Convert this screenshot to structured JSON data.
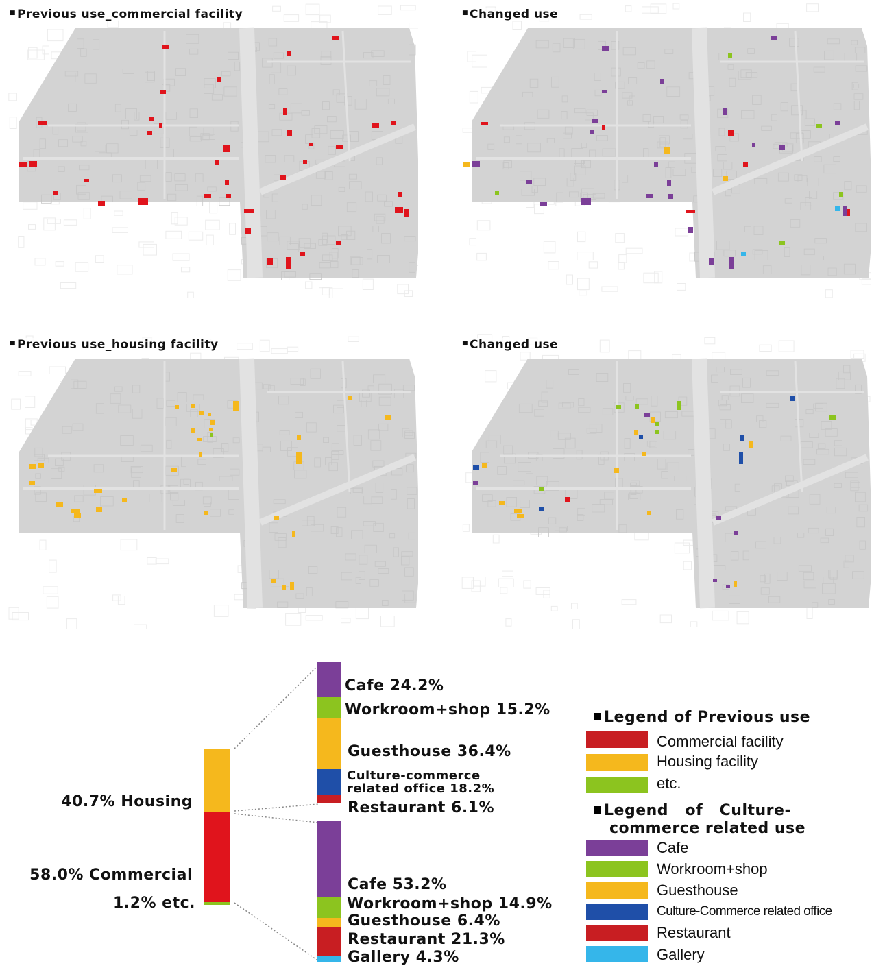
{
  "colors": {
    "commercial": "#e0141c",
    "housing": "#f5b81d",
    "etc": "#8cc41f",
    "cafe": "#7b3f98",
    "workroom_shop": "#8cc41f",
    "guesthouse": "#f5b81d",
    "office": "#1f4fa8",
    "restaurant": "#c81e22",
    "gallery": "#35b6ea",
    "map_gray": "#d3d3d3"
  },
  "panels": {
    "top_left_title": "Previous use_commercial facility",
    "top_right_title": "Changed use",
    "bottom_left_title": "Previous use_housing facility",
    "bottom_right_title": "Changed use"
  },
  "main_bar": {
    "housing_label": "40.7% Housing",
    "commercial_label": "58.0% Commercial",
    "etc_label": "1.2% etc.",
    "housing_pct": 40.7,
    "commercial_pct": 58.0,
    "etc_pct": 1.2
  },
  "housing_bar": {
    "cafe": "Cafe 24.2%",
    "workroom": "Workroom+shop 15.2%",
    "guesthouse": "Guesthouse 36.4%",
    "office_line1": "Culture-commerce",
    "office_line2": "related office 18.2%",
    "restaurant": "Restaurant 6.1%",
    "values": [
      24.2,
      15.2,
      36.4,
      18.2,
      6.1
    ]
  },
  "commercial_bar": {
    "cafe": "Cafe 53.2%",
    "workroom": "Workroom+shop 14.9%",
    "guesthouse": "Guesthouse 6.4%",
    "restaurant": "Restaurant 21.3%",
    "gallery": "Gallery 4.3%",
    "values": [
      53.2,
      14.9,
      6.4,
      21.3,
      4.3
    ]
  },
  "legend_previous": {
    "heading": "Legend of Previous use",
    "items": [
      "Commercial facility",
      "Housing facility",
      "etc."
    ]
  },
  "legend_culture": {
    "heading_line1": "Legend   of   Culture-",
    "heading_line2": "commerce related use",
    "items": [
      "Cafe",
      "Workroom+shop",
      "Guesthouse",
      "Culture-Commerce related office",
      "Restaurant",
      "Gallery"
    ]
  }
}
